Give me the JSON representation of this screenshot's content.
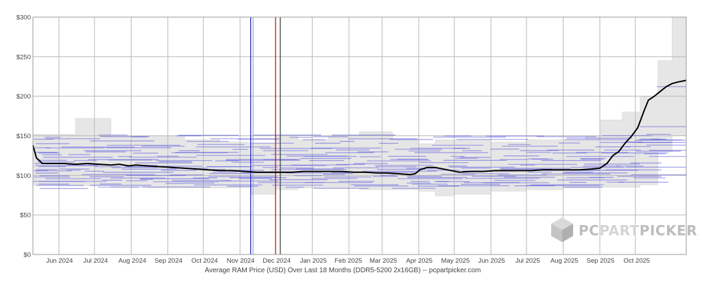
{
  "chart_data": {
    "type": "line",
    "caption": "Average RAM Price (USD) Over Last 18 Months (DDR5-5200 2x16GB) -- pcpartpicker.com",
    "xlabel": "",
    "ylabel": "",
    "ylim": [
      0,
      300
    ],
    "xlim": [
      "2024-05-10",
      "2025-11-13"
    ],
    "y_ticks": [
      0,
      50,
      100,
      150,
      200,
      250,
      300
    ],
    "y_tick_labels": [
      "$0",
      "$50",
      "$100",
      "$150",
      "$200",
      "$250",
      "$300"
    ],
    "x_ticks": [
      {
        "date": "2024-06-01",
        "label": "Jun 2024"
      },
      {
        "date": "2024-07-01",
        "label": "Jul 2024"
      },
      {
        "date": "2024-08-01",
        "label": "Aug 2024"
      },
      {
        "date": "2024-09-01",
        "label": "Sep 2024"
      },
      {
        "date": "2024-10-01",
        "label": "Oct 2024"
      },
      {
        "date": "2024-11-01",
        "label": "Nov 2024"
      },
      {
        "date": "2024-12-01",
        "label": "Dec 2024"
      },
      {
        "date": "2025-01-01",
        "label": "Jan 2025"
      },
      {
        "date": "2025-02-01",
        "label": "Feb 2025"
      },
      {
        "date": "2025-03-01",
        "label": "Mar 2025"
      },
      {
        "date": "2025-04-01",
        "label": "Apr 2025"
      },
      {
        "date": "2025-05-01",
        "label": "May 2025"
      },
      {
        "date": "2025-06-01",
        "label": "Jun 2025"
      },
      {
        "date": "2025-07-01",
        "label": "Jul 2025"
      },
      {
        "date": "2025-08-01",
        "label": "Aug 2025"
      },
      {
        "date": "2025-09-01",
        "label": "Sep 2025"
      },
      {
        "date": "2025-10-01",
        "label": "Oct 2025"
      }
    ],
    "grid": true,
    "series": [
      {
        "color": "#000000",
        "points": [
          [
            "2024-05-10",
            138
          ],
          [
            "2024-05-13",
            122
          ],
          [
            "2024-05-18",
            115
          ],
          [
            "2024-05-25",
            115
          ],
          [
            "2024-06-05",
            115
          ],
          [
            "2024-06-15",
            114
          ],
          [
            "2024-06-25",
            115
          ],
          [
            "2024-07-05",
            114
          ],
          [
            "2024-07-15",
            113
          ],
          [
            "2024-07-22",
            114
          ],
          [
            "2024-07-30",
            112
          ],
          [
            "2024-08-05",
            113
          ],
          [
            "2024-08-15",
            112
          ],
          [
            "2024-08-25",
            111
          ],
          [
            "2024-09-05",
            110
          ],
          [
            "2024-09-15",
            109
          ],
          [
            "2024-09-25",
            108
          ],
          [
            "2024-10-05",
            107
          ],
          [
            "2024-10-15",
            106
          ],
          [
            "2024-10-25",
            106
          ],
          [
            "2024-11-05",
            105
          ],
          [
            "2024-11-15",
            104
          ],
          [
            "2024-11-25",
            104
          ],
          [
            "2024-12-05",
            104
          ],
          [
            "2024-12-15",
            104
          ],
          [
            "2024-12-25",
            105
          ],
          [
            "2025-01-05",
            105
          ],
          [
            "2025-01-15",
            105
          ],
          [
            "2025-01-25",
            105
          ],
          [
            "2025-02-05",
            104
          ],
          [
            "2025-02-15",
            104
          ],
          [
            "2025-02-25",
            103
          ],
          [
            "2025-03-05",
            103
          ],
          [
            "2025-03-15",
            102
          ],
          [
            "2025-03-25",
            101
          ],
          [
            "2025-03-29",
            102
          ],
          [
            "2025-04-02",
            107
          ],
          [
            "2025-04-08",
            110
          ],
          [
            "2025-04-15",
            110
          ],
          [
            "2025-04-25",
            107
          ],
          [
            "2025-05-05",
            104
          ],
          [
            "2025-05-15",
            105
          ],
          [
            "2025-05-25",
            105
          ],
          [
            "2025-06-05",
            106
          ],
          [
            "2025-06-15",
            106
          ],
          [
            "2025-06-25",
            106
          ],
          [
            "2025-07-05",
            106
          ],
          [
            "2025-07-15",
            107
          ],
          [
            "2025-07-25",
            107
          ],
          [
            "2025-08-05",
            107
          ],
          [
            "2025-08-15",
            107
          ],
          [
            "2025-08-25",
            108
          ],
          [
            "2025-09-01",
            109
          ],
          [
            "2025-09-07",
            115
          ],
          [
            "2025-09-12",
            125
          ],
          [
            "2025-09-17",
            130
          ],
          [
            "2025-09-22",
            140
          ],
          [
            "2025-09-28",
            150
          ],
          [
            "2025-10-03",
            160
          ],
          [
            "2025-10-08",
            180
          ],
          [
            "2025-10-12",
            195
          ],
          [
            "2025-10-17",
            200
          ],
          [
            "2025-10-22",
            206
          ],
          [
            "2025-10-27",
            212
          ],
          [
            "2025-11-01",
            216
          ],
          [
            "2025-11-06",
            218
          ],
          [
            "2025-11-13",
            220
          ]
        ]
      }
    ],
    "min_max_band": {
      "color": "#e6e6e6",
      "points": [
        [
          "2024-05-10",
          88,
          152
        ],
        [
          "2024-06-01",
          87,
          152
        ],
        [
          "2024-06-15",
          87,
          172
        ],
        [
          "2024-07-01",
          87,
          172
        ],
        [
          "2024-07-15",
          85,
          148
        ],
        [
          "2024-08-15",
          84,
          150
        ],
        [
          "2024-09-15",
          84,
          145
        ],
        [
          "2024-10-15",
          84,
          142
        ],
        [
          "2024-11-10",
          76,
          140
        ],
        [
          "2024-12-01",
          82,
          150
        ],
        [
          "2024-12-20",
          84,
          145
        ],
        [
          "2025-01-15",
          84,
          150
        ],
        [
          "2025-02-10",
          82,
          155
        ],
        [
          "2025-03-10",
          82,
          145
        ],
        [
          "2025-04-01",
          80,
          140
        ],
        [
          "2025-04-15",
          74,
          145
        ],
        [
          "2025-05-01",
          76,
          145
        ],
        [
          "2025-06-01",
          80,
          142
        ],
        [
          "2025-07-01",
          82,
          145
        ],
        [
          "2025-08-01",
          84,
          145
        ],
        [
          "2025-08-20",
          84,
          150
        ],
        [
          "2025-09-01",
          85,
          170
        ],
        [
          "2025-09-20",
          85,
          180
        ],
        [
          "2025-10-05",
          88,
          200
        ],
        [
          "2025-10-20",
          130,
          245
        ],
        [
          "2025-11-01",
          150,
          300
        ],
        [
          "2025-11-13",
          150,
          300
        ]
      ]
    },
    "retailer_price_lines": {
      "color": "#5555dd",
      "y_values": [
        85,
        88,
        90,
        92,
        94,
        96,
        98,
        100,
        102,
        104,
        106,
        108,
        110,
        112,
        115,
        118,
        120,
        122,
        125,
        128,
        130,
        133,
        136,
        140,
        144,
        148,
        150
      ]
    },
    "vertical_markers": [
      {
        "date": "2024-11-10",
        "color": "#1a1aaa"
      },
      {
        "date": "2024-11-12",
        "color": "#9999ee"
      },
      {
        "date": "2024-12-01",
        "color": "#cc0000"
      },
      {
        "date": "2024-12-05",
        "color": "#333333"
      }
    ]
  },
  "watermark": {
    "text_part1": "PC",
    "text_part2": "PART",
    "text_part3": "PICKER",
    "color_light": "#cfcfcf",
    "color_dark": "#bdbdbd",
    "icon_name": "pcpartpicker-cube-icon"
  }
}
